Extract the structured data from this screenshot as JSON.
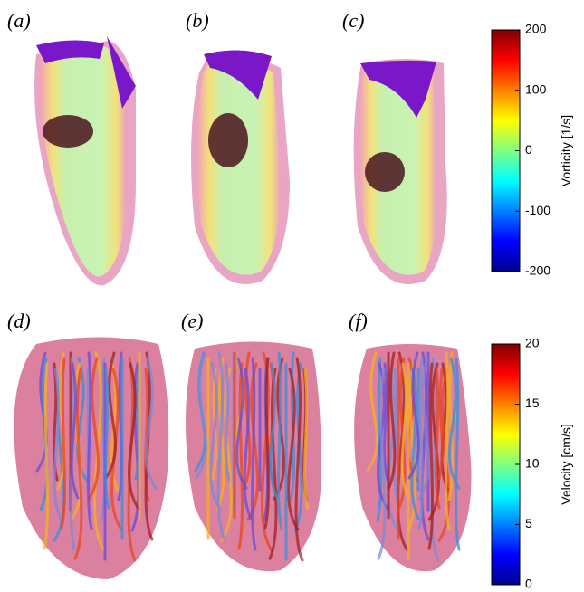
{
  "panel_labels": [
    "(a)",
    "(b)",
    "(c)",
    "(d)",
    "(e)",
    "(f)"
  ],
  "colorbars": [
    {
      "label": "Vorticity [1/s]",
      "lim": [
        -200,
        200
      ],
      "ticks": [
        -200,
        -100,
        0,
        100,
        200
      ]
    },
    {
      "label": "Velocity [cm/s]",
      "lim": [
        0,
        20
      ],
      "ticks": [
        0,
        5,
        10,
        15,
        20
      ]
    }
  ]
}
